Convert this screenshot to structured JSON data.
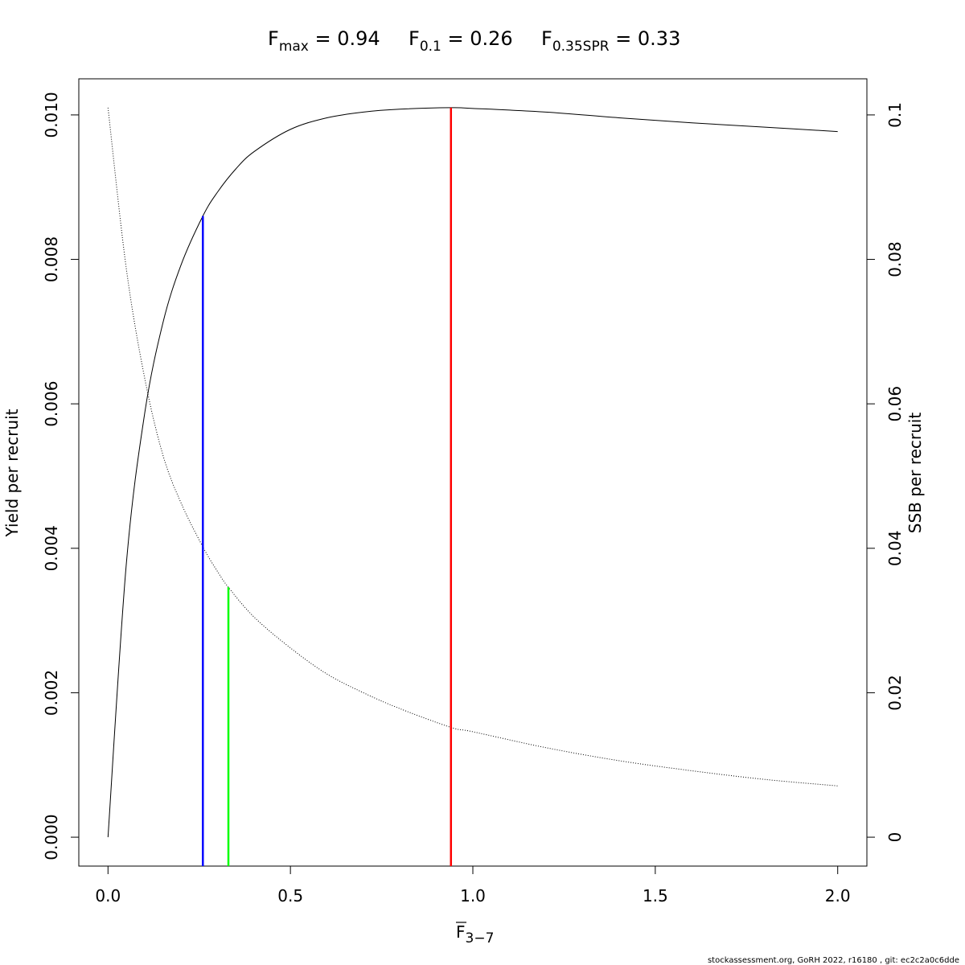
{
  "title": {
    "fmax": {
      "base": "F",
      "sub": "max",
      "value": " = 0.94"
    },
    "f01": {
      "base": "F",
      "sub": "0.1",
      "value": " = 0.26"
    },
    "fspr": {
      "base": "F",
      "sub": "0.35SPR",
      "value": " = 0.33"
    }
  },
  "footer": "stockassessment.org, GoRH  2022, r16180 , git: ec2c2a0c6dde",
  "chart_data": {
    "type": "line",
    "title": "Fmax = 0.94   F0.1 = 0.26   F0.35SPR = 0.33",
    "xlabel": {
      "base": "F",
      "sub": "3−7"
    },
    "ylabel": "Yield per recruit",
    "y2label": "SSB per recruit",
    "xlim": [
      -0.08,
      2.08
    ],
    "ylim": [
      -0.0004,
      0.0105
    ],
    "y2lim": [
      -0.004,
      0.105
    ],
    "x_ticks": [
      0,
      0.5,
      1,
      1.5,
      2
    ],
    "x_tick_labels": [
      "0.0",
      "0.5",
      "1.0",
      "1.5",
      "2.0"
    ],
    "y_ticks": [
      0,
      0.002,
      0.004,
      0.006,
      0.008,
      0.01
    ],
    "y_tick_labels": [
      "0.000",
      "0.002",
      "0.004",
      "0.006",
      "0.008",
      "0.010"
    ],
    "y2_ticks": [
      0,
      0.02,
      0.04,
      0.06,
      0.08,
      0.1
    ],
    "y2_tick_labels": [
      "0",
      "0.02",
      "0.04",
      "0.06",
      "0.08",
      "0.1"
    ],
    "grid": false,
    "series": [
      {
        "axis": "left",
        "style": "solid",
        "color": "#000000",
        "x": [
          0,
          0.05,
          0.1,
          0.15,
          0.2,
          0.26,
          0.3,
          0.35,
          0.4,
          0.5,
          0.6,
          0.7,
          0.8,
          0.94,
          1.0,
          1.2,
          1.4,
          1.6,
          1.8,
          2.0
        ],
        "y": [
          0,
          0.00377,
          0.00585,
          0.00711,
          0.00792,
          0.0086,
          0.00893,
          0.00925,
          0.00949,
          0.0098,
          0.00996,
          0.01004,
          0.01008,
          0.0101,
          0.01009,
          0.01004,
          0.00996,
          0.00989,
          0.00983,
          0.00977
        ]
      },
      {
        "axis": "right",
        "style": "dotted",
        "color": "#000000",
        "x": [
          0,
          0.05,
          0.1,
          0.15,
          0.2,
          0.26,
          0.3,
          0.33,
          0.4,
          0.5,
          0.6,
          0.7,
          0.8,
          0.94,
          1.0,
          1.2,
          1.4,
          1.6,
          1.8,
          2.0
        ],
        "y": [
          0.101,
          0.0788,
          0.0637,
          0.053,
          0.0463,
          0.0402,
          0.0368,
          0.0346,
          0.0305,
          0.0262,
          0.0226,
          0.02,
          0.0178,
          0.0152,
          0.0146,
          0.0124,
          0.0106,
          0.0092,
          0.008,
          0.0071
        ]
      }
    ],
    "reference_lines": [
      {
        "x": 0.94,
        "y_top": 0.0101,
        "color": "#ff0000"
      },
      {
        "x": 0.26,
        "y_top": 0.0086,
        "color": "#0000ff"
      },
      {
        "x": 0.33,
        "y_top": 0.00346,
        "color": "#00ff00"
      }
    ]
  }
}
